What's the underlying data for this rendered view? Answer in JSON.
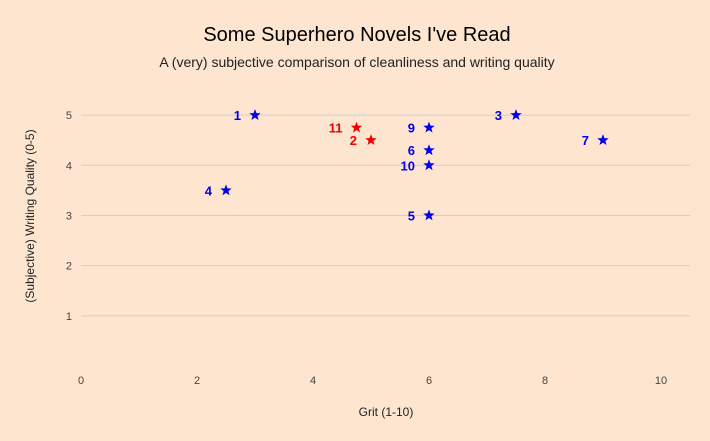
{
  "chart_data": {
    "type": "scatter",
    "title": "Some Superhero Novels I've Read",
    "subtitle": "A (very) subjective comparison of cleanliness and writing quality",
    "xlabel": "Grit (1-10)",
    "ylabel": "(Subjective) Writing Quality (0-5)",
    "xlim": [
      0,
      10.5
    ],
    "ylim": [
      0,
      5.5
    ],
    "xticks": [
      "0",
      "2",
      "4",
      "6",
      "8",
      "10"
    ],
    "yticks": [
      "1",
      "2",
      "3",
      "4",
      "5"
    ],
    "grid": "horizontal",
    "marker": "star",
    "colors": {
      "blue": "#0000ee",
      "red": "#ee0000",
      "background": "#fde5cf"
    },
    "points": [
      {
        "label": "1",
        "x": 3,
        "y": 5,
        "color": "#0000ee",
        "label_side": "left"
      },
      {
        "label": "2",
        "x": 5,
        "y": 4.5,
        "color": "#ee0000",
        "label_side": "left"
      },
      {
        "label": "3",
        "x": 7.5,
        "y": 5,
        "color": "#0000ee",
        "label_side": "left"
      },
      {
        "label": "4",
        "x": 2.5,
        "y": 3.5,
        "color": "#0000ee",
        "label_side": "left"
      },
      {
        "label": "5",
        "x": 6,
        "y": 3,
        "color": "#0000ee",
        "label_side": "left"
      },
      {
        "label": "6",
        "x": 6,
        "y": 4.3,
        "color": "#0000ee",
        "label_side": "left"
      },
      {
        "label": "7",
        "x": 9,
        "y": 4.5,
        "color": "#0000ee",
        "label_side": "left"
      },
      {
        "label": "9",
        "x": 6,
        "y": 4.75,
        "color": "#0000ee",
        "label_side": "left"
      },
      {
        "label": "10",
        "x": 6,
        "y": 4,
        "color": "#0000ee",
        "label_side": "left"
      },
      {
        "label": "11",
        "x": 4.75,
        "y": 4.75,
        "color": "#ee0000",
        "label_side": "left"
      }
    ]
  }
}
